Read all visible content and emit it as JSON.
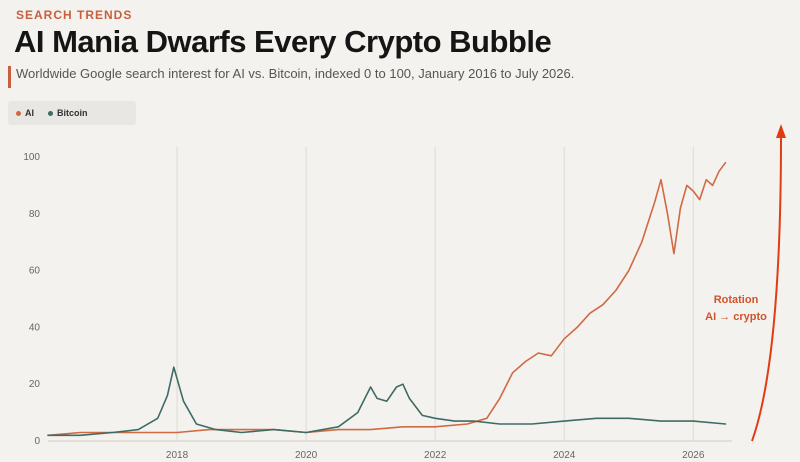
{
  "header": {
    "eyebrow": "SEARCH TRENDS",
    "title": "AI Mania Dwarfs Every Crypto Bubble",
    "subtitle": "Worldwide Google search interest for AI vs. Bitcoin, indexed 0 to 100, January 2016 to July 2026."
  },
  "legend": {
    "ai": "AI",
    "bitcoin": "Bitcoin"
  },
  "annotation": {
    "line1": "Rotation",
    "line2": "AI → crypto"
  },
  "colors": {
    "ai": "#cf6a43",
    "bitcoin": "#3f6b66",
    "arrow": "#e23b12",
    "grid": "#dedbd5"
  },
  "chart_data": {
    "type": "line",
    "xlabel": "",
    "ylabel": "",
    "xlim": [
      2016.0,
      2026.6
    ],
    "ylim": [
      0,
      100
    ],
    "xticks": [
      2018,
      2020,
      2022,
      2024,
      2026
    ],
    "yticks": [
      0,
      20,
      40,
      60,
      80,
      100
    ],
    "grid": "vertical",
    "legend": "top-left",
    "series": [
      {
        "name": "AI",
        "color": "#cf6a43",
        "x": [
          2016.0,
          2016.5,
          2017.0,
          2017.5,
          2018.0,
          2018.5,
          2019.0,
          2019.5,
          2020.0,
          2020.5,
          2021.0,
          2021.5,
          2022.0,
          2022.5,
          2022.8,
          2023.0,
          2023.2,
          2023.4,
          2023.6,
          2023.8,
          2024.0,
          2024.2,
          2024.4,
          2024.6,
          2024.8,
          2025.0,
          2025.2,
          2025.4,
          2025.5,
          2025.6,
          2025.7,
          2025.8,
          2025.9,
          2026.0,
          2026.1,
          2026.2,
          2026.3,
          2026.4,
          2026.5
        ],
        "y": [
          2,
          3,
          3,
          3,
          3,
          4,
          4,
          4,
          3,
          4,
          4,
          5,
          5,
          6,
          8,
          15,
          24,
          28,
          31,
          30,
          36,
          40,
          45,
          48,
          53,
          60,
          70,
          84,
          92,
          80,
          66,
          82,
          90,
          88,
          85,
          92,
          90,
          95,
          98
        ]
      },
      {
        "name": "Bitcoin",
        "color": "#3f6b66",
        "x": [
          2016.0,
          2016.5,
          2017.0,
          2017.4,
          2017.7,
          2017.85,
          2017.95,
          2018.1,
          2018.3,
          2018.6,
          2019.0,
          2019.5,
          2020.0,
          2020.5,
          2020.8,
          2021.0,
          2021.1,
          2021.25,
          2021.4,
          2021.5,
          2021.6,
          2021.8,
          2022.0,
          2022.3,
          2022.6,
          2023.0,
          2023.5,
          2024.0,
          2024.5,
          2025.0,
          2025.5,
          2026.0,
          2026.5
        ],
        "y": [
          2,
          2,
          3,
          4,
          8,
          16,
          26,
          14,
          6,
          4,
          3,
          4,
          3,
          5,
          10,
          19,
          15,
          14,
          19,
          20,
          15,
          9,
          8,
          7,
          7,
          6,
          6,
          7,
          8,
          8,
          7,
          7,
          6
        ]
      }
    ]
  }
}
